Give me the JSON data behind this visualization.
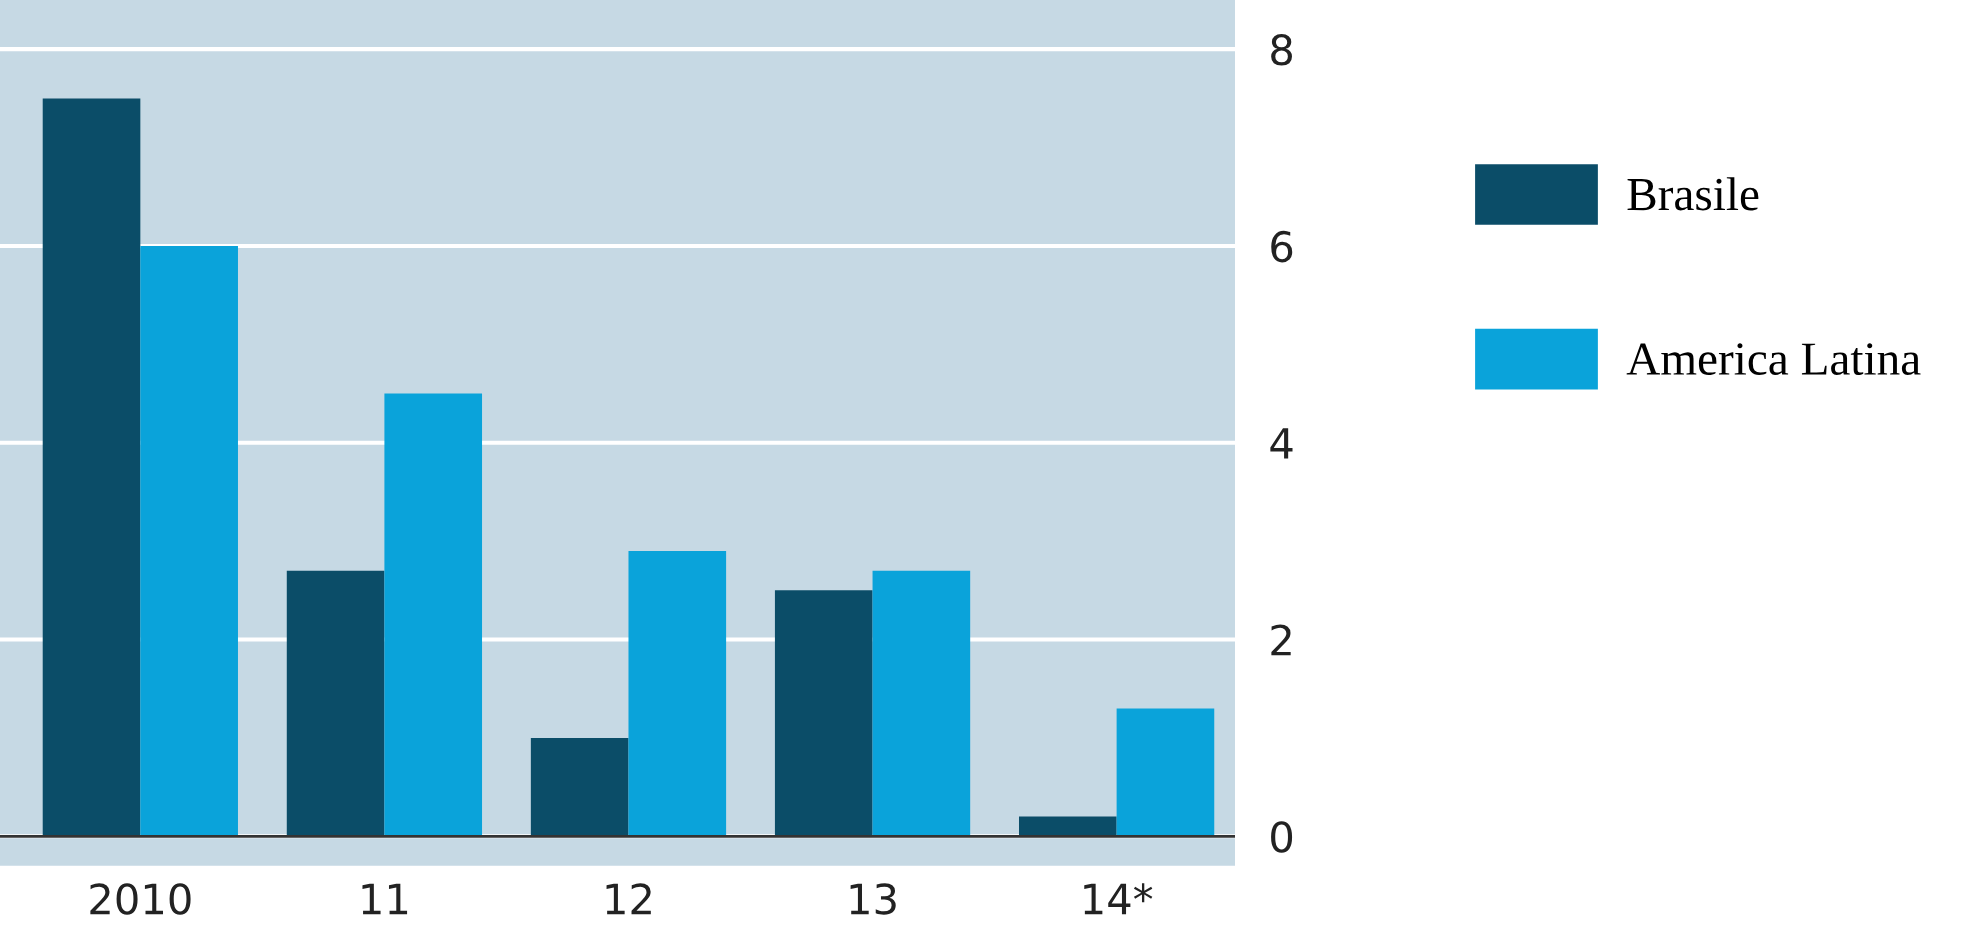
{
  "chart_data": {
    "type": "bar",
    "categories": [
      "2010",
      "11",
      "12",
      "13",
      "14*"
    ],
    "series": [
      {
        "name": "Brasile",
        "color": "#0b4d68",
        "values": [
          7.5,
          2.7,
          1.0,
          2.5,
          0.2
        ]
      },
      {
        "name": "America Latina",
        "color": "#0aa3da",
        "values": [
          6.0,
          4.5,
          2.9,
          2.7,
          1.3
        ]
      }
    ],
    "ylim": [
      -0.3,
      8.5
    ],
    "yticks": [
      0,
      2,
      4,
      6,
      8
    ],
    "grid": "y",
    "legend": "right"
  }
}
